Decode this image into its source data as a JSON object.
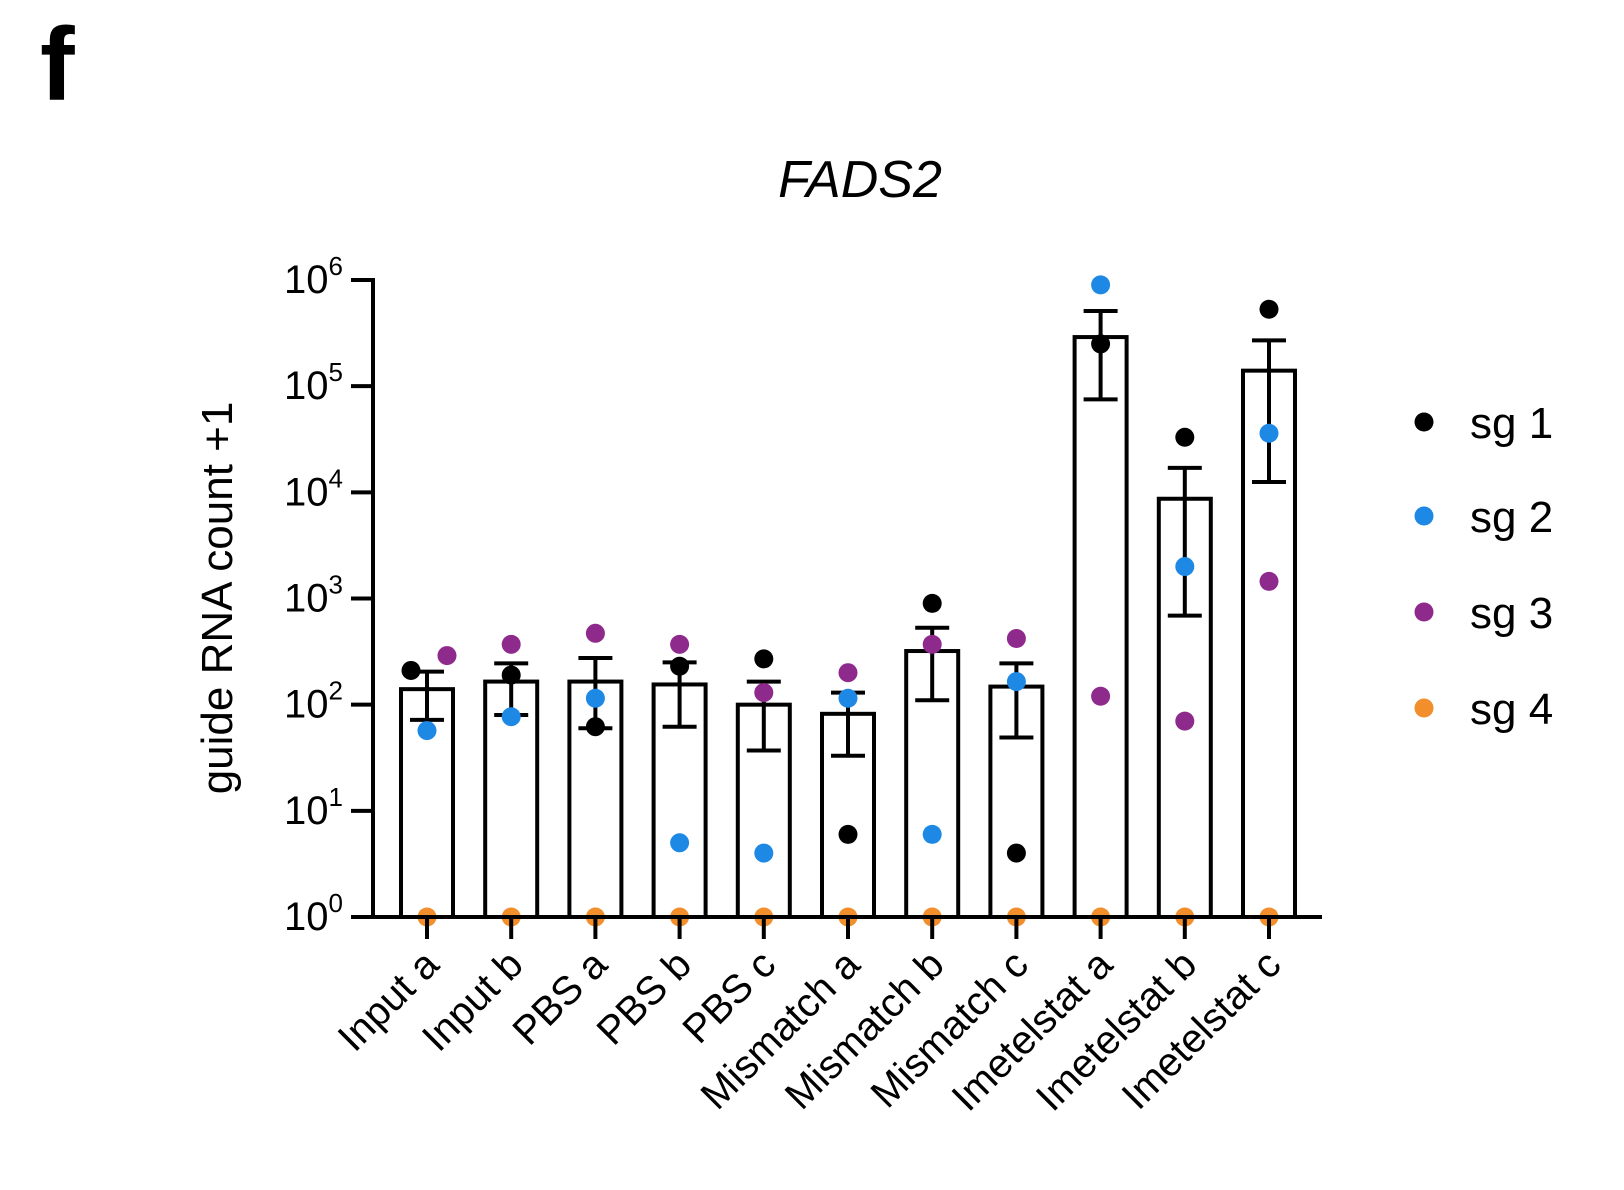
{
  "panel_label": "f",
  "chart_data": {
    "type": "bar",
    "title": "FADS2",
    "ylabel": "guide RNA count +1",
    "xlabel": "",
    "yscale": "log",
    "ylim": [
      1,
      1000000
    ],
    "yticks": [
      {
        "base": "10",
        "exp": "0"
      },
      {
        "base": "10",
        "exp": "1"
      },
      {
        "base": "10",
        "exp": "2"
      },
      {
        "base": "10",
        "exp": "3"
      },
      {
        "base": "10",
        "exp": "4"
      },
      {
        "base": "10",
        "exp": "5"
      },
      {
        "base": "10",
        "exp": "6"
      }
    ],
    "categories": [
      "Input a",
      "Input b",
      "PBS a",
      "PBS b",
      "PBS c",
      "Mismatch a",
      "Mismatch b",
      "Mismatch c",
      "Imetelstat a",
      "Imetelstat b",
      "Imetelstat c"
    ],
    "bar_values": [
      140,
      165,
      165,
      155,
      100,
      82,
      320,
      148,
      290000,
      8700,
      140000
    ],
    "error_low": [
      72,
      80,
      60,
      62,
      37,
      33,
      110,
      49,
      75000,
      690,
      12500
    ],
    "error_high": [
      205,
      245,
      275,
      250,
      165,
      130,
      530,
      245,
      510000,
      17000,
      270000
    ],
    "series": [
      {
        "name": "sg 1",
        "color": "#000000",
        "values": [
          210,
          190,
          62,
          230,
          270,
          6,
          900,
          4,
          250000,
          33000,
          530000
        ]
      },
      {
        "name": "sg 2",
        "color": "#1e88e5",
        "values": [
          57,
          77,
          115,
          5,
          4,
          115,
          6,
          165,
          900000,
          2000,
          36000
        ]
      },
      {
        "name": "sg 3",
        "color": "#8e2a8c",
        "values": [
          290,
          370,
          470,
          370,
          130,
          200,
          370,
          420,
          120,
          70,
          1450
        ]
      },
      {
        "name": "sg 4",
        "color": "#f28e2b",
        "values": [
          1,
          1,
          1,
          1,
          1,
          1,
          1,
          1,
          1,
          1,
          1
        ]
      }
    ],
    "legend_position": "right",
    "grid": false
  }
}
